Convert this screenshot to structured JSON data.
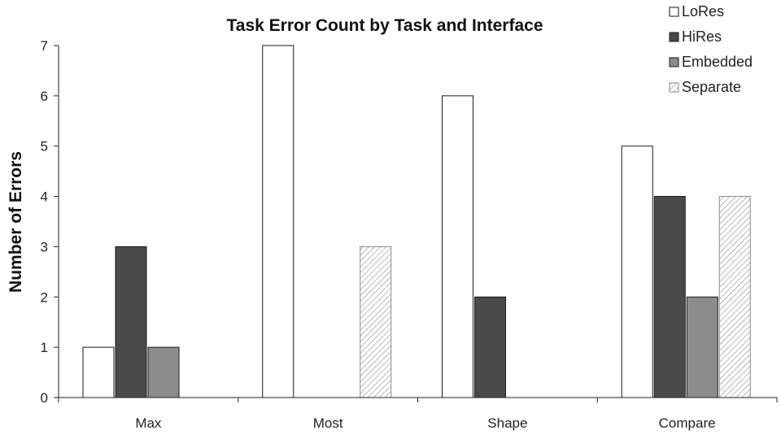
{
  "chart_data": {
    "type": "bar",
    "title": "Task Error Count by Task and Interface",
    "xlabel": "",
    "ylabel": "Number of Errors",
    "ylim": [
      0,
      7
    ],
    "yticks": [
      "0",
      "1",
      "2",
      "3",
      "4",
      "5",
      "6",
      "7"
    ],
    "categories": [
      "Max",
      "Most",
      "Shape",
      "Compare"
    ],
    "series": [
      {
        "name": "LoRes",
        "values": [
          1,
          7,
          6,
          5
        ],
        "color": "#ffffff",
        "pattern": "solid"
      },
      {
        "name": "HiRes",
        "values": [
          3,
          0,
          2,
          4
        ],
        "color": "#4a4a4a",
        "pattern": "solid"
      },
      {
        "name": "Embedded",
        "values": [
          1,
          0,
          0,
          2
        ],
        "color": "#8c8c8c",
        "pattern": "solid"
      },
      {
        "name": "Separate",
        "values": [
          0,
          3,
          0,
          4
        ],
        "color": "#ffffff",
        "pattern": "diagonal-hatch"
      }
    ],
    "grid": false,
    "legend_position": "top-right"
  }
}
